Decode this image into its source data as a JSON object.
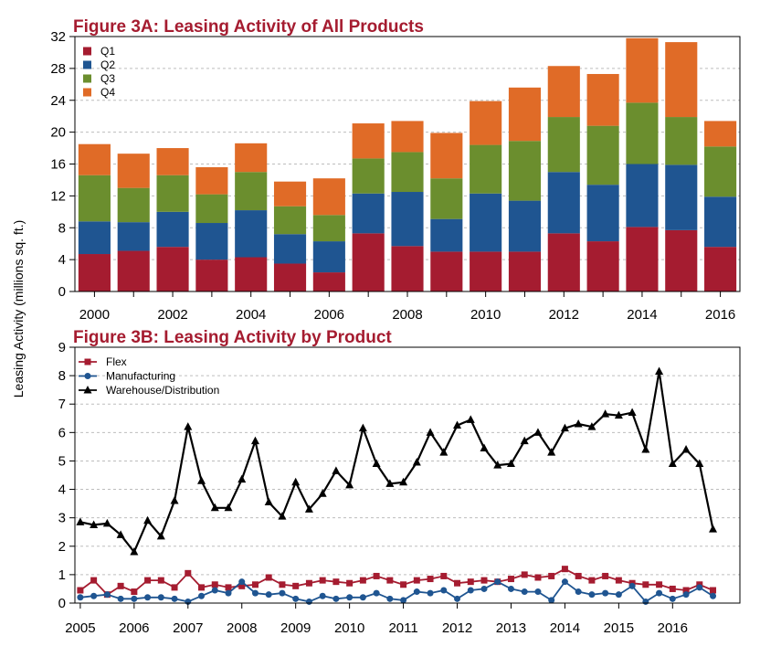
{
  "y_axis_label": "Leasing Activity (millions sq. ft.)",
  "chart_data": [
    {
      "type": "bar",
      "stacked": true,
      "title": "Figure 3A: Leasing Activity of All Products",
      "ylim": [
        0,
        32
      ],
      "yticks": [
        0,
        4,
        8,
        12,
        16,
        20,
        24,
        28,
        32
      ],
      "categories": [
        "2000",
        "2001",
        "2002",
        "2003",
        "2004",
        "2005",
        "2006",
        "2007",
        "2008",
        "2009",
        "2010",
        "2011",
        "2012",
        "2013",
        "2014",
        "2015",
        "2016"
      ],
      "xtick_labels": [
        "2000",
        "2002",
        "2004",
        "2006",
        "2008",
        "2010",
        "2012",
        "2014",
        "2016"
      ],
      "legend_position": "top-left",
      "series": [
        {
          "name": "Q1",
          "color": "#A51C30",
          "values": [
            4.7,
            5.1,
            5.6,
            4.0,
            4.3,
            3.5,
            2.4,
            7.3,
            5.7,
            5.0,
            5.0,
            5.0,
            7.3,
            6.3,
            8.1,
            7.7,
            5.6
          ]
        },
        {
          "name": "Q2",
          "color": "#1F5591",
          "values": [
            4.1,
            3.6,
            4.4,
            4.6,
            5.9,
            3.7,
            3.9,
            5.0,
            6.8,
            4.1,
            7.3,
            6.4,
            7.7,
            7.1,
            7.9,
            8.2,
            6.3
          ]
        },
        {
          "name": "Q3",
          "color": "#6B8E2E",
          "values": [
            5.8,
            4.3,
            4.6,
            3.6,
            4.8,
            3.5,
            3.3,
            4.4,
            5.0,
            5.1,
            6.1,
            7.5,
            6.9,
            7.4,
            7.7,
            6.0,
            6.3
          ]
        },
        {
          "name": "Q4",
          "color": "#E06B27",
          "values": [
            3.9,
            4.3,
            3.4,
            3.4,
            3.6,
            3.1,
            4.6,
            4.4,
            3.9,
            5.7,
            5.5,
            6.7,
            6.4,
            6.5,
            8.1,
            9.4,
            3.2
          ]
        }
      ]
    },
    {
      "type": "line",
      "title": "Figure 3B: Leasing Activity by Product",
      "ylim": [
        0,
        9
      ],
      "yticks": [
        0,
        1,
        2,
        3,
        4,
        5,
        6,
        7,
        8,
        9
      ],
      "xlim": [
        2004.9,
        2017.25
      ],
      "xticks": [
        2005,
        2006,
        2007,
        2008,
        2009,
        2010,
        2011,
        2012,
        2013,
        2014,
        2015,
        2016
      ],
      "legend_position": "top-left",
      "x": [
        2005.0,
        2005.25,
        2005.5,
        2005.75,
        2006.0,
        2006.25,
        2006.5,
        2006.75,
        2007.0,
        2007.25,
        2007.5,
        2007.75,
        2008.0,
        2008.25,
        2008.5,
        2008.75,
        2009.0,
        2009.25,
        2009.5,
        2009.75,
        2010.0,
        2010.25,
        2010.5,
        2010.75,
        2011.0,
        2011.25,
        2011.5,
        2011.75,
        2012.0,
        2012.25,
        2012.5,
        2012.75,
        2013.0,
        2013.25,
        2013.5,
        2013.75,
        2014.0,
        2014.25,
        2014.5,
        2014.75,
        2015.0,
        2015.25,
        2015.5,
        2015.75,
        2016.0,
        2016.25,
        2016.5,
        2016.75
      ],
      "series": [
        {
          "name": "Flex",
          "color": "#A51C30",
          "marker": "square",
          "values": [
            0.45,
            0.8,
            0.3,
            0.6,
            0.4,
            0.8,
            0.8,
            0.55,
            1.05,
            0.55,
            0.65,
            0.55,
            0.6,
            0.65,
            0.9,
            0.65,
            0.6,
            0.7,
            0.8,
            0.75,
            0.7,
            0.8,
            0.95,
            0.8,
            0.65,
            0.8,
            0.85,
            0.95,
            0.7,
            0.75,
            0.8,
            0.75,
            0.85,
            1.0,
            0.9,
            0.95,
            1.2,
            0.95,
            0.8,
            0.95,
            0.8,
            0.7,
            0.65,
            0.65,
            0.5,
            0.45,
            0.65,
            0.45
          ]
        },
        {
          "name": "Manufacturing",
          "color": "#1F5591",
          "marker": "circle",
          "values": [
            0.2,
            0.25,
            0.3,
            0.15,
            0.15,
            0.2,
            0.2,
            0.15,
            0.05,
            0.25,
            0.45,
            0.35,
            0.75,
            0.35,
            0.3,
            0.35,
            0.15,
            0.05,
            0.25,
            0.15,
            0.2,
            0.2,
            0.35,
            0.15,
            0.1,
            0.4,
            0.35,
            0.45,
            0.15,
            0.45,
            0.5,
            0.75,
            0.5,
            0.4,
            0.4,
            0.1,
            0.75,
            0.4,
            0.3,
            0.35,
            0.3,
            0.6,
            0.05,
            0.35,
            0.15,
            0.3,
            0.55,
            0.25
          ]
        },
        {
          "name": "Warehouse/Distribution",
          "color": "#000000",
          "marker": "triangle",
          "values": [
            2.85,
            2.75,
            2.8,
            2.4,
            1.8,
            2.9,
            2.35,
            3.6,
            6.2,
            4.3,
            3.35,
            3.35,
            4.35,
            5.7,
            3.55,
            3.05,
            4.25,
            3.3,
            3.85,
            4.65,
            4.15,
            6.15,
            4.9,
            4.2,
            4.25,
            4.95,
            6.0,
            5.3,
            6.25,
            6.45,
            5.45,
            4.85,
            4.9,
            5.7,
            6.0,
            5.3,
            6.15,
            6.3,
            6.2,
            6.65,
            6.6,
            6.7,
            5.4,
            8.15,
            4.9,
            5.4,
            4.9,
            2.6
          ]
        }
      ]
    }
  ]
}
